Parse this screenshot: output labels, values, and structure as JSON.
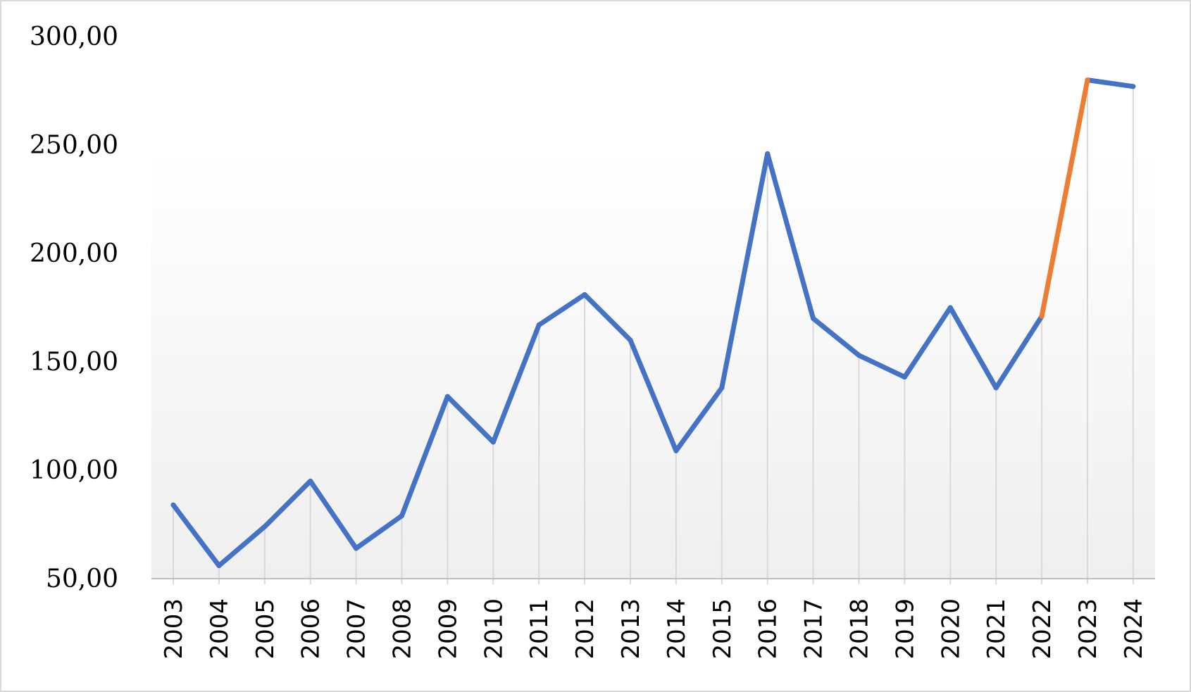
{
  "chart_data": {
    "type": "line",
    "title": "",
    "xlabel": "",
    "ylabel": "",
    "x": [
      "2003",
      "2004",
      "2005",
      "2006",
      "2007",
      "2008",
      "2009",
      "2010",
      "2011",
      "2012",
      "2013",
      "2014",
      "2015",
      "2016",
      "2017",
      "2018",
      "2019",
      "2020",
      "2021",
      "2022",
      "2023",
      "2024"
    ],
    "values": [
      84,
      56,
      74,
      95,
      64,
      79,
      134,
      113,
      167,
      181,
      160,
      109,
      138,
      246,
      170,
      153,
      143,
      175,
      138,
      171,
      280,
      277
    ],
    "ylim": [
      50,
      300
    ],
    "y_ticks": [
      "50,00",
      "100,00",
      "150,00",
      "200,00",
      "250,00",
      "300,00"
    ],
    "y_tick_values": [
      50,
      100,
      150,
      200,
      250,
      300
    ],
    "highlight_segment": {
      "from": "2022",
      "to": "2023"
    },
    "drop_lines": true,
    "grid": false,
    "legend": "none",
    "colors": {
      "line": "#4472C4",
      "highlight": "#ED7D31",
      "drop_line": "#d9d9d9",
      "axis": "#bfbfbf",
      "plot_gradient_top": "#ffffff",
      "plot_gradient_bottom": "#efefef"
    }
  }
}
